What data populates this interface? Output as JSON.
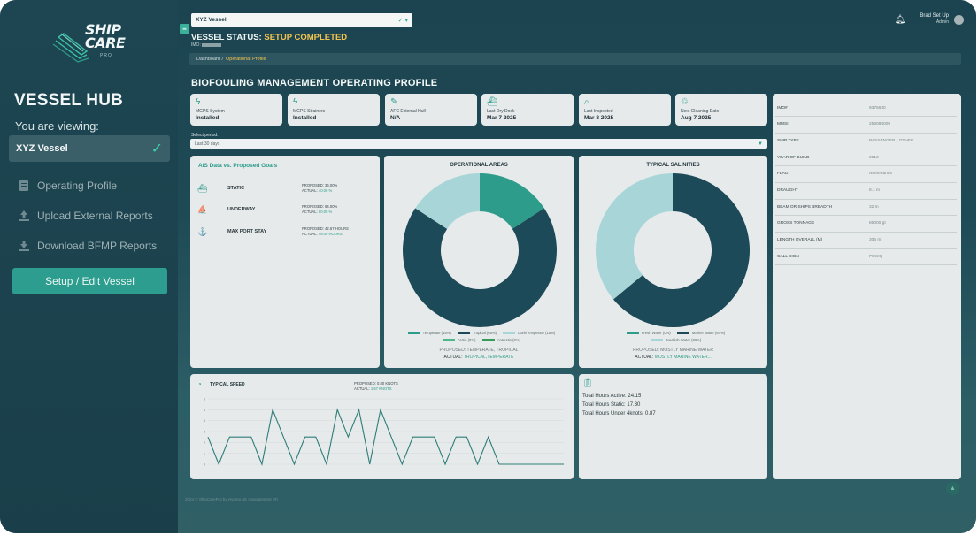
{
  "brand": {
    "logo_text_1": "SHIP",
    "logo_text_2": "CARE",
    "logo_sub": "PRO"
  },
  "sidebar": {
    "title": "VESSEL HUB",
    "viewing_label": "You are viewing:",
    "current_vessel": "XYZ Vessel",
    "items": [
      {
        "label": "Operating Profile",
        "icon": "document-icon"
      },
      {
        "label": "Upload External Reports",
        "icon": "upload-icon"
      },
      {
        "label": "Download BFMP Reports",
        "icon": "download-icon"
      }
    ],
    "setup_button": "Setup / Edit Vessel"
  },
  "header": {
    "vessel_select": "XYZ Vessel",
    "status_prefix": "VESSEL STATUS:",
    "status_value": "SETUP COMPLETED",
    "imo_label": "IMO:",
    "breadcrumb_root": "Dashboard",
    "breadcrumb_sep": "/",
    "breadcrumb_current": "Operational Profile",
    "user_name": "Brad Set Up",
    "user_role": "Admin"
  },
  "page_title": "BIOFOULING MANAGEMENT OPERATING PROFILE",
  "kpis": [
    {
      "label": "MGPS System",
      "value": "Installed",
      "icon": "bolt-icon"
    },
    {
      "label": "MGPS Strainers",
      "value": "Installed",
      "icon": "bolt-icon"
    },
    {
      "label": "AFC External Hull",
      "value": "N/A",
      "icon": "paint-brush-icon"
    },
    {
      "label": "Last Dry Dock",
      "value": "Mar 7 2025",
      "icon": "ship-dock-icon"
    },
    {
      "label": "Last Inspected",
      "value": "Mar 8 2025",
      "icon": "search-icon"
    },
    {
      "label": "Next Cleaning Date",
      "value": "Aug 7 2025",
      "icon": "cleaning-icon"
    }
  ],
  "period": {
    "label": "Select period:",
    "value": "Last 30 days"
  },
  "vessel_info": [
    {
      "key": "IMO#",
      "value": "9375630"
    },
    {
      "key": "MMSI",
      "value": "256088000"
    },
    {
      "key": "SHIP TYPE",
      "value": "PASSENGER - OTHER"
    },
    {
      "key": "YEAR OF BUILD",
      "value": "2013"
    },
    {
      "key": "FLAG",
      "value": "Netherlands"
    },
    {
      "key": "DRAUGHT",
      "value": "8.1 m"
    },
    {
      "key": "BEAM OR SHIPS BREADTH",
      "value": "32 m"
    },
    {
      "key": "GROSS TONNAGE",
      "value": "86000 gt"
    },
    {
      "key": "LENGTH OVERALL (M)",
      "value": "305 m"
    },
    {
      "key": "CALL SIGN",
      "value": "PDWQ"
    }
  ],
  "ais": {
    "title": "AIS Data vs. Proposed Goals",
    "rows": [
      {
        "name": "STATIC",
        "proposed": "PROPOSED: 36.00%",
        "actual_label": "ACTUAL:",
        "actual": "40.00 %",
        "icon": "ship-static-icon"
      },
      {
        "name": "UNDERWAY",
        "proposed": "PROPOSED: 64.00%",
        "actual_label": "ACTUAL:",
        "actual": "60.00 %",
        "icon": "ship-underway-icon"
      },
      {
        "name": "MAX PORT STAY",
        "proposed": "PROPOSED: 42.67 HOURS",
        "actual_label": "ACTUAL:",
        "actual": "48.00 HOURS",
        "icon": "anchor-icon"
      }
    ]
  },
  "op_areas": {
    "title": "OPERATIONAL AREAS",
    "legend": [
      {
        "label": "Temperate (15%)",
        "color": "#2e9c8a"
      },
      {
        "label": "Tropical (65%)",
        "color": "#1d4a58"
      },
      {
        "label": "Dark/Temperate (15%)",
        "color": "#a8d6d8"
      },
      {
        "label": "Arctic (0%)",
        "color": "#4fb58a"
      },
      {
        "label": "Antarctic (0%)",
        "color": "#3a9a5a"
      }
    ],
    "proposed": "PROPOSED: TEMPERATE, TROPICAL",
    "actual_label": "ACTUAL:",
    "actual": "TROPICAL,TEMPERATE"
  },
  "salinities": {
    "title": "TYPICAL SALINITIES",
    "legend": [
      {
        "label": "Fresh Water (0%)",
        "color": "#2e9c8a"
      },
      {
        "label": "Marine Water (64%)",
        "color": "#1d4a58"
      },
      {
        "label": "Brackish Water (36%)",
        "color": "#a8d6d8"
      }
    ],
    "proposed": "PROPOSED: MOSTLY MARINE WATER",
    "actual_label": "ACTUAL:",
    "actual": "MOSTLY MARINE WATER..."
  },
  "speed": {
    "title": "TYPICAL SPEED",
    "proposed": "PROPOSED: 0.80 KNOTS",
    "actual_label": "ACTUAL:",
    "actual": "1.57 KNOTS"
  },
  "hours": {
    "active": "Total Hours Active: 24.15",
    "static": "Total Hours Static: 17.30",
    "under": "Total Hours Under 4knots: 0.87"
  },
  "footer": "2024 © ShipCarePro by Hydrex plc management (R)",
  "chart_data": [
    {
      "type": "pie",
      "title": "OPERATIONAL AREAS",
      "labels": [
        "Temperate",
        "Tropical",
        "Dark/Temperate",
        "Arctic",
        "Antarctic"
      ],
      "values": [
        15,
        65,
        15,
        0,
        0
      ],
      "colors": [
        "#2e9c8a",
        "#1d4a58",
        "#a8d6d8",
        "#4fb58a",
        "#3a9a5a"
      ]
    },
    {
      "type": "pie",
      "title": "TYPICAL SALINITIES",
      "labels": [
        "Fresh Water",
        "Marine Water",
        "Brackish Water"
      ],
      "values": [
        0,
        64,
        36
      ],
      "colors": [
        "#2e9c8a",
        "#1d4a58",
        "#a8d6d8"
      ]
    },
    {
      "type": "line",
      "title": "TYPICAL SPEED",
      "ylim": [
        0,
        6
      ],
      "yticks": [
        0,
        1,
        2,
        3,
        4,
        5,
        6
      ],
      "values": [
        2.5,
        0,
        2.5,
        2.5,
        2.5,
        0,
        5,
        2.5,
        0,
        2.5,
        2.5,
        0,
        5,
        2.5,
        5,
        0,
        5,
        2.5,
        0,
        2.5,
        2.5,
        2.5,
        0,
        2.5,
        2.5,
        0,
        2.5,
        0,
        0,
        0,
        0,
        0,
        0,
        0
      ]
    }
  ]
}
